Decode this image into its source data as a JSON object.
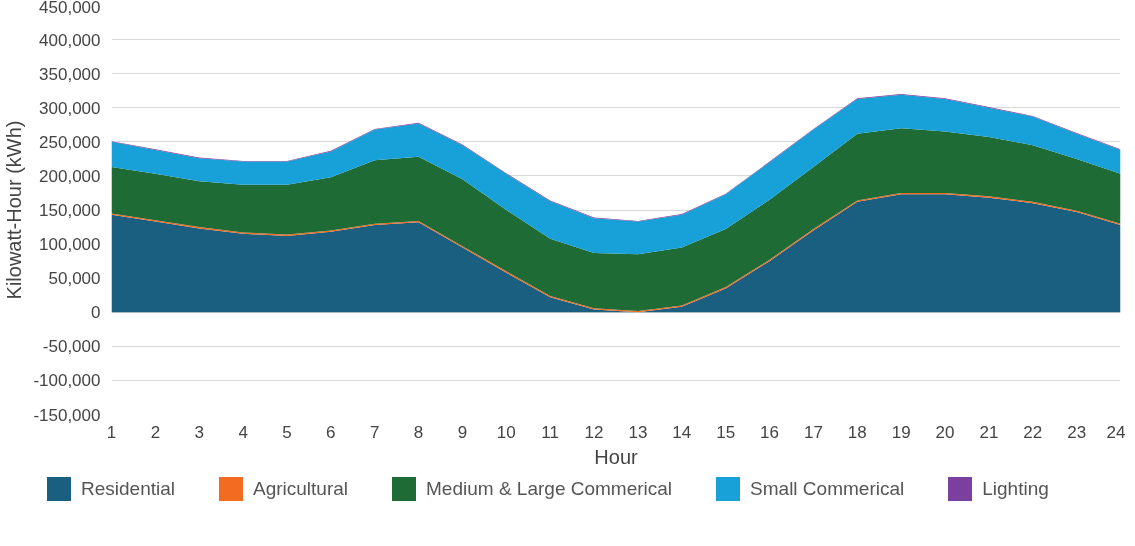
{
  "chart_data": {
    "type": "area",
    "stacked": true,
    "xlabel": "Hour",
    "ylabel": "Kilowatt-Hour (kWh)",
    "x": [
      1,
      2,
      3,
      4,
      5,
      6,
      7,
      8,
      9,
      10,
      11,
      12,
      13,
      14,
      15,
      16,
      17,
      18,
      19,
      20,
      21,
      22,
      23,
      24
    ],
    "xlim": [
      1,
      24
    ],
    "xticks": [
      1,
      2,
      3,
      4,
      5,
      6,
      7,
      8,
      9,
      10,
      11,
      12,
      13,
      14,
      15,
      16,
      17,
      18,
      19,
      20,
      21,
      22,
      23,
      24
    ],
    "ylim": [
      -150000,
      450000
    ],
    "yticks": [
      {
        "value": -150000,
        "label": "-150,000"
      },
      {
        "value": -100000,
        "label": "-100,000"
      },
      {
        "value": -50000,
        "label": "-50,000"
      },
      {
        "value": 0,
        "label": "0"
      },
      {
        "value": 50000,
        "label": "50,000"
      },
      {
        "value": 100000,
        "label": "100,000"
      },
      {
        "value": 150000,
        "label": "150,000"
      },
      {
        "value": 200000,
        "label": "200,000"
      },
      {
        "value": 250000,
        "label": "250,000"
      },
      {
        "value": 300000,
        "label": "300,000"
      },
      {
        "value": 350000,
        "label": "350,000"
      },
      {
        "value": 400000,
        "label": "400,000"
      },
      {
        "value": 450000,
        "label": "450,000"
      }
    ],
    "grid": "y",
    "legend": "bottom",
    "series": [
      {
        "name": "Residential",
        "color": "#1a5e80",
        "values": [
          143000,
          133000,
          123000,
          115000,
          112000,
          118000,
          128000,
          132000,
          95000,
          58000,
          22000,
          4000,
          0,
          8000,
          35000,
          75000,
          120000,
          162000,
          173000,
          173000,
          168000,
          160000,
          147000,
          128000
        ]
      },
      {
        "name": "Agricultural",
        "color": "#f26b21",
        "values": [
          2000,
          2000,
          2000,
          2000,
          2000,
          2000,
          2000,
          2000,
          2000,
          2000,
          2000,
          2000,
          2000,
          2000,
          2000,
          2000,
          2000,
          2000,
          2000,
          2000,
          2000,
          2000,
          2000,
          2000
        ]
      },
      {
        "name": "Medium & Large Commerical",
        "color": "#1e6b35",
        "values": [
          68000,
          68000,
          67000,
          70000,
          73000,
          78000,
          93000,
          94000,
          98000,
          90000,
          84000,
          81000,
          83000,
          85000,
          85000,
          88000,
          91000,
          98000,
          95000,
          90000,
          87000,
          83000,
          76000,
          73000
        ]
      },
      {
        "name": "Small Commerical",
        "color": "#18a0d8",
        "values": [
          37000,
          35000,
          34000,
          34000,
          34000,
          38000,
          45000,
          49000,
          50000,
          53000,
          55000,
          51000,
          48000,
          48000,
          51000,
          55000,
          55000,
          51000,
          49000,
          48000,
          43000,
          42000,
          37000,
          35000
        ]
      },
      {
        "name": "Lighting",
        "color": "#7b3f9e",
        "values": [
          1000,
          1000,
          1000,
          1000,
          1000,
          1000,
          1000,
          1000,
          1000,
          1000,
          1000,
          1000,
          1000,
          1000,
          1000,
          1000,
          1000,
          1000,
          1000,
          1000,
          1000,
          1000,
          1000,
          1000
        ]
      }
    ]
  }
}
